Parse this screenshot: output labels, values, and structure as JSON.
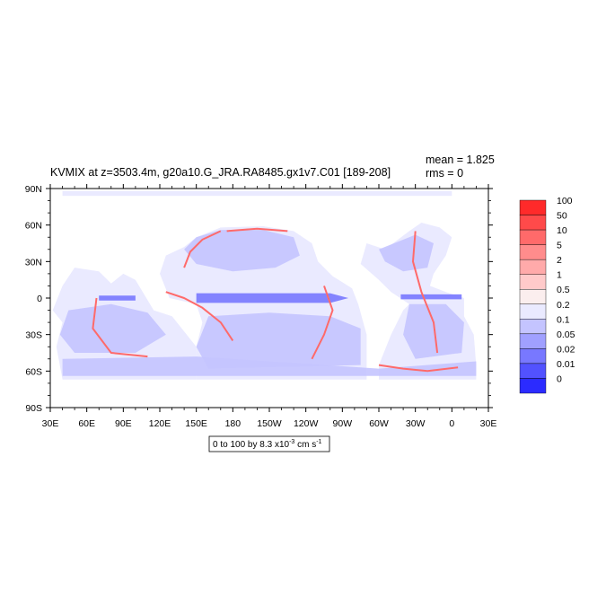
{
  "chart_data": {
    "type": "heatmap",
    "title": "KVMIX at z=3503.4m, g20a10.G_JRA.RA8485.gx1v7.C01 [189-208]",
    "stats": [
      "mean = 1.825",
      "rms = 0"
    ],
    "x_ticks": [
      {
        "lon": 30,
        "label": "30E"
      },
      {
        "lon": 60,
        "label": "60E"
      },
      {
        "lon": 90,
        "label": "90E"
      },
      {
        "lon": 120,
        "label": "120E"
      },
      {
        "lon": 150,
        "label": "150E"
      },
      {
        "lon": 180,
        "label": "180"
      },
      {
        "lon": 210,
        "label": "150W"
      },
      {
        "lon": 240,
        "label": "120W"
      },
      {
        "lon": 270,
        "label": "90W"
      },
      {
        "lon": 300,
        "label": "60W"
      },
      {
        "lon": 330,
        "label": "30W"
      },
      {
        "lon": 360,
        "label": "0"
      },
      {
        "lon": 390,
        "label": "30E"
      }
    ],
    "y_ticks": [
      {
        "lat": 90,
        "label": "90N"
      },
      {
        "lat": 60,
        "label": "60N"
      },
      {
        "lat": 30,
        "label": "30N"
      },
      {
        "lat": 0,
        "label": "0"
      },
      {
        "lat": -30,
        "label": "30S"
      },
      {
        "lat": -60,
        "label": "60S"
      },
      {
        "lat": -90,
        "label": "90S"
      }
    ],
    "xlim": [
      30,
      390
    ],
    "ylim": [
      -90,
      90
    ],
    "colorbar": {
      "labels": [
        "100",
        "50",
        "10",
        "5",
        "2",
        "1",
        "0.5",
        "0.2",
        "0.1",
        "0.05",
        "0.02",
        "0.01",
        "0"
      ],
      "colors": [
        "#ff2a2a",
        "#ff4a4a",
        "#ff6a6a",
        "#ff8c8c",
        "#ffaaaa",
        "#ffcaca",
        "#fbeeee",
        "#eaeaff",
        "#c4c4ff",
        "#a0a0ff",
        "#7878ff",
        "#5252ff",
        "#2b2bff"
      ]
    },
    "units_label": "0 to 100 by 8.3 x10",
    "units_exp": "-3",
    "units_tail": " cm s",
    "units_exp2": "-1",
    "ocean_background": "#eaeaff",
    "dominant_color": "#c4c4ff",
    "strong_color": "#7878ff",
    "high_color": "#ff6a6a"
  }
}
